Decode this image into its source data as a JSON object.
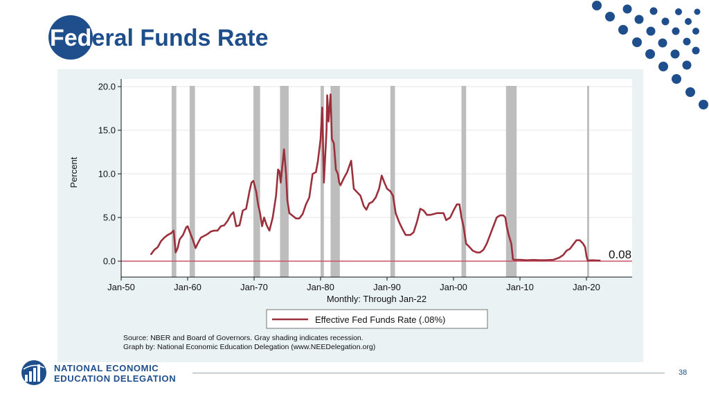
{
  "slide": {
    "title_on_circle": "Fed",
    "title_rest": "eral Funds Rate",
    "page_number": "38",
    "logo": {
      "line1": "NATIONAL ECONOMIC",
      "line2": "EDUCATION DELEGATION"
    }
  },
  "colors": {
    "brand_blue": "#1f4e8c",
    "series_line": "#9b2f3b",
    "recession_shading": "#bdbdbd",
    "zero_line": "#c9526a",
    "panel_background": "#eaf2f3"
  },
  "chart_data": {
    "type": "line",
    "title": "",
    "xlabel": "Monthly: Through Jan-22",
    "ylabel": "Percent",
    "xlim": [
      1950,
      2027
    ],
    "ylim": [
      0,
      20
    ],
    "x_ticks": [
      {
        "value": 1950,
        "label": "Jan-50"
      },
      {
        "value": 1960,
        "label": "Jan-60"
      },
      {
        "value": 1970,
        "label": "Jan-70"
      },
      {
        "value": 1980,
        "label": "Jan-80"
      },
      {
        "value": 1990,
        "label": "Jan-90"
      },
      {
        "value": 2000,
        "label": "Jan-00"
      },
      {
        "value": 2010,
        "label": "Jan-10"
      },
      {
        "value": 2020,
        "label": "Jan-20"
      }
    ],
    "y_ticks": [
      {
        "value": 0,
        "label": "0.0"
      },
      {
        "value": 5,
        "label": "5.0"
      },
      {
        "value": 10,
        "label": "10.0"
      },
      {
        "value": 15,
        "label": "15.0"
      },
      {
        "value": 20,
        "label": "20.0"
      }
    ],
    "grid": true,
    "legend": {
      "position": "bottom",
      "label": "Effective Fed Funds Rate (.08%)"
    },
    "end_label": "0.08",
    "recessions": [
      [
        1957.6,
        1958.3
      ],
      [
        1960.3,
        1961.1
      ],
      [
        1969.9,
        1970.9
      ],
      [
        1973.9,
        1975.2
      ],
      [
        1980.0,
        1980.5
      ],
      [
        1981.5,
        1982.9
      ],
      [
        1990.5,
        1991.2
      ],
      [
        2001.2,
        2001.9
      ],
      [
        2007.9,
        2009.5
      ],
      [
        2020.1,
        2020.4
      ]
    ],
    "series": [
      {
        "name": "Effective Fed Funds Rate (.08%)",
        "x": [
          1954.5,
          1955.0,
          1955.5,
          1956.0,
          1956.5,
          1957.0,
          1957.5,
          1957.9,
          1958.2,
          1958.5,
          1958.8,
          1959.3,
          1959.8,
          1960.0,
          1960.4,
          1960.8,
          1961.2,
          1961.5,
          1962.0,
          1962.5,
          1963.0,
          1963.5,
          1964.0,
          1964.5,
          1965.0,
          1965.5,
          1966.0,
          1966.5,
          1966.9,
          1967.3,
          1967.8,
          1968.3,
          1968.8,
          1969.3,
          1969.6,
          1969.9,
          1970.3,
          1970.6,
          1970.9,
          1971.2,
          1971.5,
          1971.9,
          1972.3,
          1972.8,
          1973.3,
          1973.6,
          1973.8,
          1974.0,
          1974.5,
          1974.8,
          1975.0,
          1975.3,
          1975.8,
          1976.3,
          1976.8,
          1977.3,
          1977.8,
          1978.3,
          1978.8,
          1979.3,
          1979.6,
          1980.0,
          1980.25,
          1980.5,
          1980.7,
          1980.9,
          1981.0,
          1981.2,
          1981.5,
          1981.7,
          1982.0,
          1982.3,
          1982.6,
          1982.8,
          1983.0,
          1983.5,
          1984.0,
          1984.6,
          1985.0,
          1985.5,
          1986.0,
          1986.5,
          1986.9,
          1987.3,
          1987.8,
          1988.3,
          1988.8,
          1989.2,
          1989.6,
          1990.0,
          1990.5,
          1990.9,
          1991.3,
          1991.8,
          1992.3,
          1992.8,
          1993.5,
          1994.0,
          1994.5,
          1995.0,
          1995.5,
          1996.0,
          1996.5,
          1997.5,
          1998.5,
          1998.9,
          1999.5,
          2000.0,
          2000.5,
          2000.9,
          2001.2,
          2001.5,
          2001.9,
          2002.3,
          2002.9,
          2003.5,
          2004.0,
          2004.5,
          2005.0,
          2005.5,
          2006.0,
          2006.5,
          2007.0,
          2007.5,
          2007.8,
          2008.0,
          2008.3,
          2008.7,
          2008.95,
          2009.2,
          2010.0,
          2011.0,
          2012.0,
          2013.0,
          2014.0,
          2015.0,
          2015.9,
          2016.5,
          2017.0,
          2017.5,
          2018.0,
          2018.5,
          2019.0,
          2019.5,
          2019.8,
          2020.0,
          2020.2,
          2020.4,
          2021.0,
          2021.5,
          2022.0
        ],
        "values": [
          0.8,
          1.3,
          1.6,
          2.3,
          2.7,
          3.0,
          3.2,
          3.5,
          1.0,
          1.5,
          2.5,
          3.0,
          3.9,
          4.0,
          3.2,
          2.4,
          1.5,
          2.0,
          2.7,
          2.9,
          3.1,
          3.4,
          3.5,
          3.5,
          4.0,
          4.1,
          4.6,
          5.3,
          5.6,
          4.0,
          4.1,
          5.8,
          6.0,
          8.0,
          9.0,
          9.2,
          8.0,
          6.5,
          5.5,
          4.0,
          5.0,
          4.1,
          3.5,
          5.0,
          7.5,
          10.5,
          10.3,
          9.0,
          12.8,
          10.0,
          7.0,
          5.5,
          5.2,
          4.9,
          4.9,
          5.4,
          6.5,
          7.3,
          10.0,
          10.2,
          11.5,
          14.0,
          17.6,
          9.0,
          12.0,
          15.0,
          19.0,
          16.0,
          19.1,
          14.0,
          13.5,
          10.5,
          10.0,
          9.0,
          8.7,
          9.5,
          10.2,
          11.5,
          8.3,
          7.9,
          7.5,
          6.3,
          5.9,
          6.6,
          6.8,
          7.3,
          8.3,
          9.8,
          9.0,
          8.3,
          8.0,
          7.5,
          5.5,
          4.5,
          3.7,
          3.0,
          3.0,
          3.3,
          4.5,
          6.0,
          5.8,
          5.3,
          5.3,
          5.5,
          5.5,
          4.7,
          5.0,
          5.8,
          6.5,
          6.5,
          5.0,
          4.0,
          2.0,
          1.7,
          1.2,
          1.0,
          1.0,
          1.3,
          2.0,
          3.0,
          4.0,
          5.0,
          5.25,
          5.25,
          5.0,
          4.0,
          3.0,
          2.0,
          0.2,
          0.15,
          0.15,
          0.1,
          0.14,
          0.1,
          0.12,
          0.15,
          0.4,
          0.7,
          1.2,
          1.4,
          1.9,
          2.4,
          2.4,
          2.0,
          1.6,
          0.6,
          0.05,
          0.09,
          0.1,
          0.08,
          0.08
        ]
      }
    ]
  },
  "chart_notes": {
    "source": "Source: NBER and Board of Governors. Gray shading indicates recession.",
    "credit": "Graph by: National Economic Education Delegation (www.NEEDelegation.org)"
  }
}
